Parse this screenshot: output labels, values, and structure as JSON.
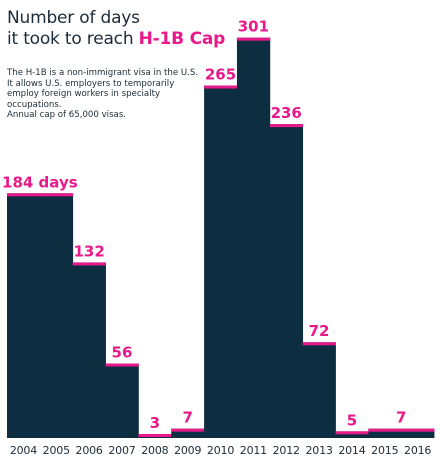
{
  "header": {
    "title_line1": "Number of days",
    "title_line2_prefix": "it took to reach ",
    "title_accent": "H-1B Cap",
    "description": [
      "The H-1B is a non-immigrant visa in the U.S.",
      "It allows U.S. employers to temporarily",
      "employ foreign workers in specialty occupations.",
      "Annual cap of 65,000 visas."
    ]
  },
  "colors": {
    "bar": "#0d2d40",
    "accent": "#e8198b",
    "text": "#1c2b38"
  },
  "chart_data": {
    "type": "bar",
    "categories": [
      "2004",
      "2005",
      "2006",
      "2007",
      "2008",
      "2009",
      "2010",
      "2011",
      "2012",
      "2013",
      "2014",
      "2015",
      "2016"
    ],
    "values": [
      184,
      184,
      132,
      56,
      3,
      7,
      265,
      301,
      236,
      72,
      5,
      7,
      7
    ],
    "value_labels": [
      "184 days",
      "",
      "132",
      "56",
      "3",
      "7",
      "265",
      "301",
      "236",
      "72",
      "5",
      "7",
      ""
    ],
    "grid": false,
    "legend": "none"
  }
}
